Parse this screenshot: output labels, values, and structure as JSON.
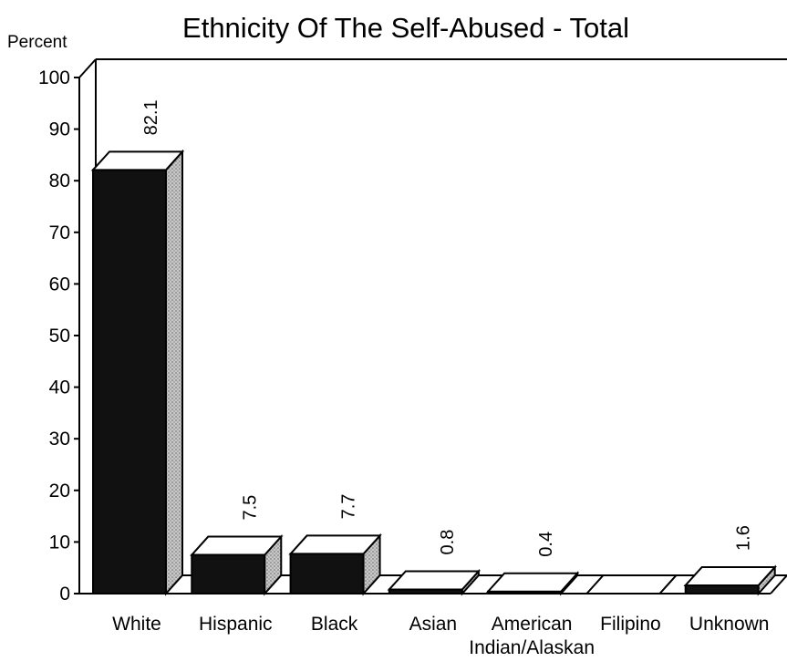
{
  "chart_data": {
    "type": "bar",
    "title": "Ethnicity Of The Self-Abused - Total",
    "ylabel": "Percent",
    "xlabel": "",
    "ylim": [
      0,
      100
    ],
    "yticks": [
      0,
      10,
      20,
      30,
      40,
      50,
      60,
      70,
      80,
      90,
      100
    ],
    "categories": [
      [
        "White"
      ],
      [
        "Hispanic"
      ],
      [
        "Black"
      ],
      [
        "Asian"
      ],
      [
        "American",
        "Indian/Alaskan"
      ],
      [
        "Filipino"
      ],
      [
        "Unknown"
      ]
    ],
    "values": [
      82.1,
      7.5,
      7.7,
      0.8,
      0.4,
      0,
      1.6
    ],
    "value_labels": [
      "82.1",
      "7.5",
      "7.7",
      "0.8",
      "0.4",
      "",
      "1.6"
    ],
    "grid": false,
    "legend": "none",
    "colors": {
      "bar_front": "#111111",
      "bar_side": "#b8b8b8",
      "bar_top": "#ffffff",
      "outline": "#000000"
    }
  }
}
